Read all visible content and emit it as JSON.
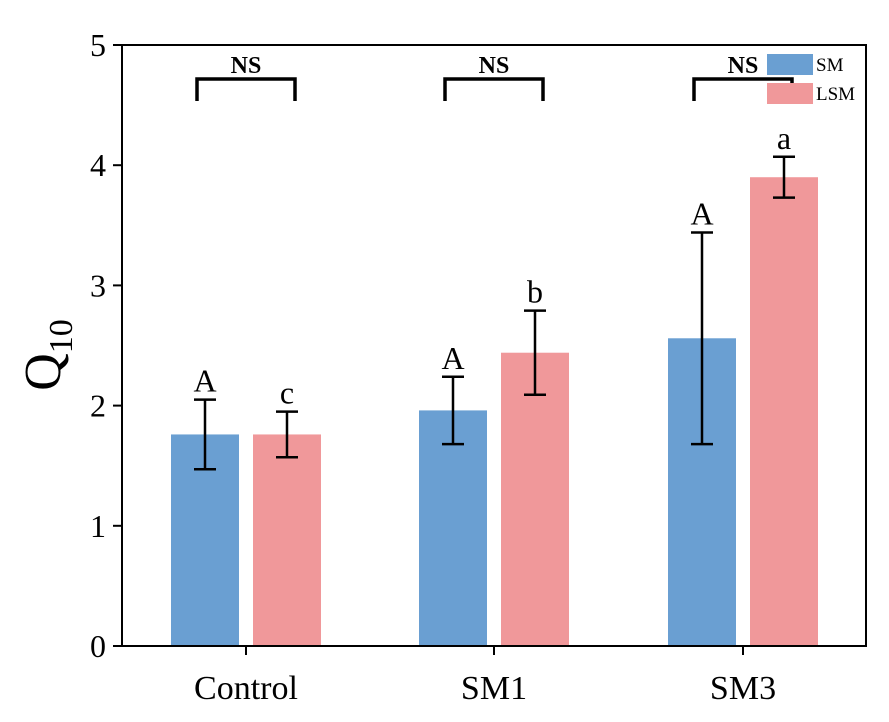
{
  "chart_data": {
    "type": "bar",
    "categories": [
      "Control",
      "SM1",
      "SM3"
    ],
    "ylabel_main": "Q",
    "ylabel_sub": "10",
    "ylim": [
      0,
      5
    ],
    "yticks": [
      0,
      1,
      2,
      3,
      4,
      5
    ],
    "grid": false,
    "legend_position": "top-right",
    "series": [
      {
        "name": "SM",
        "color": "#6a9fd2",
        "values": [
          1.76,
          1.96,
          2.56
        ],
        "errors": [
          0.29,
          0.28,
          0.88
        ],
        "letters": [
          "A",
          "A",
          "A"
        ]
      },
      {
        "name": "LSM",
        "color": "#f0989a",
        "values": [
          1.76,
          2.44,
          3.9
        ],
        "errors": [
          0.19,
          0.35,
          0.17
        ],
        "letters": [
          "c",
          "b",
          "a"
        ]
      }
    ],
    "significance": [
      "NS",
      "NS",
      "NS"
    ]
  }
}
